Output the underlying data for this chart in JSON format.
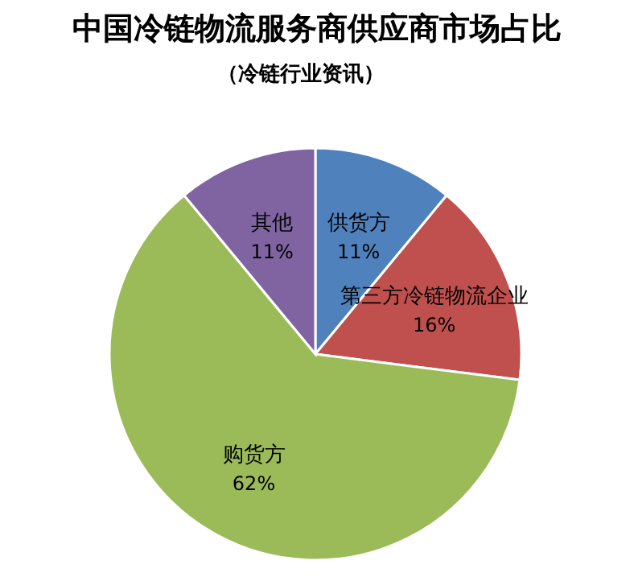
{
  "chart_data": {
    "type": "pie",
    "title": "中国冷链物流服务商供应商市场占比",
    "subtitle": "（冷链行业资讯）",
    "categories": [
      "供货方",
      "第三方冷链物流企业",
      "购货方",
      "其他"
    ],
    "values": [
      11,
      16,
      62,
      11
    ],
    "colors": [
      "#4f81bd",
      "#c0504d",
      "#9bbb59",
      "#8064a2"
    ],
    "value_labels": [
      "11%",
      "16%",
      "62%",
      "11%"
    ]
  }
}
